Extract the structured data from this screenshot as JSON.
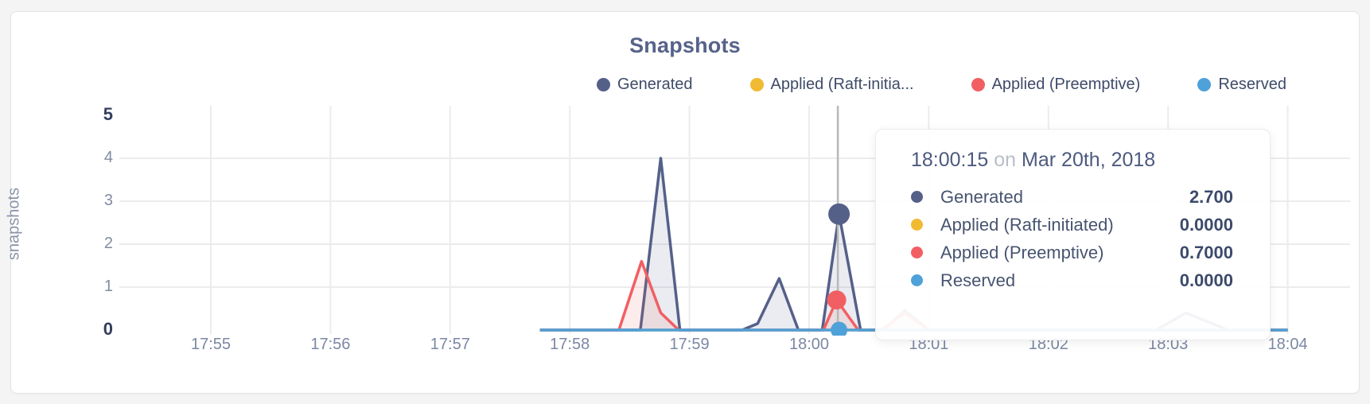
{
  "colors": {
    "generated": "#556089",
    "raft_initiated": "#f0ba33",
    "preemptive": "#f15f63",
    "reserved": "#4fa1d9",
    "grid": "#ececee",
    "hover_line": "#b8b8b8",
    "generated_fill": "rgba(85,96,137,0.12)",
    "preemptive_fill": "rgba(241,95,99,0.12)"
  },
  "chart": {
    "title": "Snapshots",
    "y_axis_label": "snapshots",
    "legend": [
      {
        "label": "Generated",
        "color": "#556089"
      },
      {
        "label": "Applied (Raft-initia...",
        "color": "#f0ba33"
      },
      {
        "label": "Applied (Preemptive)",
        "color": "#f15f63"
      },
      {
        "label": "Reserved",
        "color": "#4fa1d9"
      }
    ]
  },
  "tooltip": {
    "time": "18:00:15",
    "on_word": "on",
    "date": "Mar 20th, 2018",
    "rows": [
      {
        "label": "Generated",
        "value": "2.700",
        "color": "#556089"
      },
      {
        "label": "Applied (Raft-initiated)",
        "value": "0.0000",
        "color": "#f0ba33"
      },
      {
        "label": "Applied (Preemptive)",
        "value": "0.7000",
        "color": "#f15f63"
      },
      {
        "label": "Reserved",
        "value": "0.0000",
        "color": "#4fa1d9"
      }
    ]
  },
  "chart_data": {
    "type": "area",
    "title": "Snapshots",
    "xlabel": "",
    "ylabel": "snapshots",
    "x_tick_labels": [
      "17:55",
      "17:56",
      "17:57",
      "17:58",
      "17:59",
      "18:00",
      "18:01",
      "18:02",
      "18:03",
      "18:04"
    ],
    "y_ticks": [
      0,
      1,
      2,
      3,
      4,
      5
    ],
    "ylim": [
      0,
      5
    ],
    "x_unit": "minutes after 17:55",
    "x_range": [
      2.75,
      9.0
    ],
    "grid": true,
    "legend_position": "top-right",
    "series": [
      {
        "name": "Applied (Raft-initiated)",
        "color": "#f0ba33",
        "fill": "none",
        "points": [
          [
            2.75,
            0
          ],
          [
            9.0,
            0
          ]
        ]
      },
      {
        "name": "Generated",
        "color": "#556089",
        "fill": "rgba(85,96,137,0.12)",
        "points": [
          [
            2.75,
            0
          ],
          [
            3.59,
            0
          ],
          [
            3.76,
            4.0
          ],
          [
            3.92,
            0
          ],
          [
            4.44,
            0
          ],
          [
            4.57,
            0.15
          ],
          [
            4.75,
            1.2
          ],
          [
            4.91,
            0
          ],
          [
            5.11,
            0
          ],
          [
            5.25,
            2.7
          ],
          [
            5.43,
            0
          ],
          [
            5.62,
            0
          ],
          [
            5.8,
            0.45
          ],
          [
            6.0,
            0
          ],
          [
            7.9,
            0
          ],
          [
            8.15,
            0.4
          ],
          [
            8.5,
            0
          ],
          [
            9.0,
            0
          ]
        ],
        "hover_point": {
          "t": 5.25,
          "v": 2.7,
          "r": 13.5
        }
      },
      {
        "name": "Applied (Preemptive)",
        "color": "#f15f63",
        "fill": "rgba(241,95,99,0.12)",
        "points": [
          [
            2.75,
            0
          ],
          [
            3.41,
            0
          ],
          [
            3.6,
            1.6
          ],
          [
            3.76,
            0.4
          ],
          [
            3.91,
            0
          ],
          [
            5.12,
            0
          ],
          [
            5.23,
            0.7
          ],
          [
            5.41,
            0
          ],
          [
            5.6,
            0
          ],
          [
            5.8,
            0.4
          ],
          [
            6.0,
            0
          ],
          [
            9.0,
            0
          ]
        ],
        "hover_point": {
          "t": 5.23,
          "v": 0.7,
          "r": 12
        }
      },
      {
        "name": "Reserved",
        "color": "#4fa1d9",
        "fill": "none",
        "points": [
          [
            2.75,
            0
          ],
          [
            9.0,
            0
          ]
        ],
        "hover_point": {
          "t": 5.25,
          "v": 0,
          "r": 10.5
        }
      }
    ],
    "hover": {
      "t": 5.24,
      "time": "18:00:15",
      "date": "Mar 20th, 2018",
      "values": [
        {
          "series": "Generated",
          "value": 2.7
        },
        {
          "series": "Applied (Raft-initiated)",
          "value": 0.0
        },
        {
          "series": "Applied (Preemptive)",
          "value": 0.7
        },
        {
          "series": "Reserved",
          "value": 0.0
        }
      ]
    }
  }
}
